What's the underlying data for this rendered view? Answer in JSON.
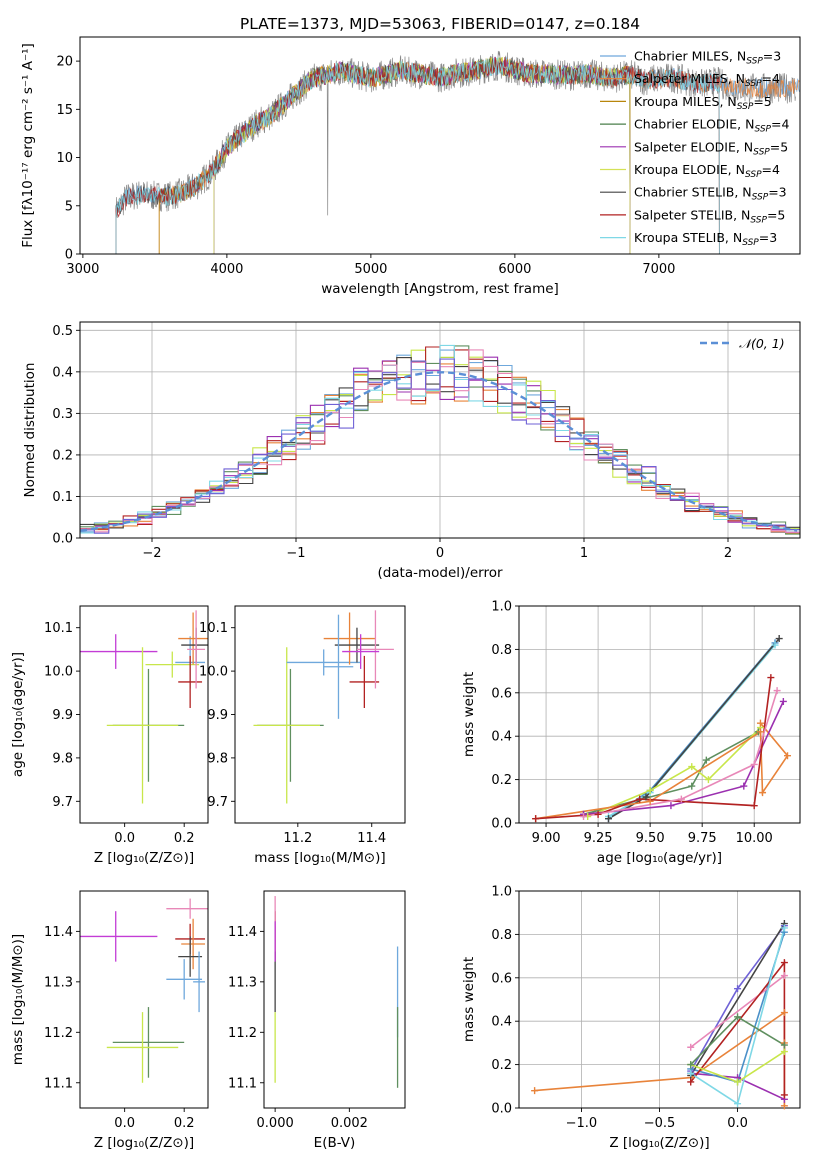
{
  "figure_title": "PLATE=1373, MJD=53063, FIBERID=0147, z=0.184",
  "chart_data": [
    {
      "id": "spectrum",
      "type": "line",
      "xlabel": "wavelength [Angstrom, rest frame]",
      "ylabel": "Flux [fλ10⁻¹⁷ erg cm⁻² s⁻¹ A⁻¹]",
      "xlim": [
        2980,
        7980
      ],
      "ylim": [
        0,
        22.5
      ],
      "xticks": [
        3000,
        4000,
        5000,
        6000,
        7000
      ],
      "yticks": [
        0,
        5,
        10,
        15,
        20
      ],
      "legend_position": "upper right",
      "grid": false,
      "x": [
        3230,
        3300,
        3400,
        3500,
        3600,
        3700,
        3800,
        3900,
        4000,
        4100,
        4200,
        4300,
        4400,
        4500,
        4600,
        4700,
        4800,
        4900,
        5000,
        5100,
        5200,
        5300,
        5400,
        5500,
        5600,
        5700,
        5800,
        5900,
        6000,
        6100,
        6200,
        6300,
        6400,
        6500,
        6600,
        6700,
        6800,
        6900,
        7000,
        7100,
        7200,
        7300,
        7400,
        7500
      ],
      "y": [
        4.5,
        5.8,
        6.2,
        6.0,
        6.0,
        6.4,
        7.2,
        8.6,
        11.0,
        12.3,
        13.5,
        14.3,
        15.6,
        17.0,
        18.2,
        18.6,
        19.0,
        18.6,
        18.2,
        18.6,
        19.0,
        18.8,
        18.5,
        18.3,
        18.8,
        18.9,
        19.3,
        19.6,
        19.1,
        18.7,
        18.7,
        18.6,
        18.5,
        18.7,
        18.4,
        18.3,
        18.6,
        18.0,
        18.2,
        18.3,
        17.9,
        17.6,
        17.9,
        17.2
      ],
      "series": [
        {
          "name": "Chabrier MILES, N",
          "sub": "SSP",
          "tail": "=3",
          "color": "#6fa8dc",
          "x_start": 3230,
          "x_end": 7980
        },
        {
          "name": "Salpeter MILES, N",
          "sub": "SSP",
          "tail": "=4",
          "color": "#e8833a",
          "x_start": 3530,
          "x_end": 7980
        },
        {
          "name": "Kroupa MILES, N",
          "sub": "SSP",
          "tail": "=5",
          "color": "#b8860b",
          "x_start": 3530,
          "x_end": 6800
        },
        {
          "name": "Chabrier ELODIE, N",
          "sub": "SSP",
          "tail": "=4",
          "color": "#4a7f4a",
          "x_start": 3910,
          "x_end": 6800
        },
        {
          "name": "Salpeter ELODIE, N",
          "sub": "SSP",
          "tail": "=5",
          "color": "#9b30b0",
          "x_start": 3910,
          "x_end": 6800
        },
        {
          "name": "Kroupa ELODIE, N",
          "sub": "SSP",
          "tail": "=4",
          "color": "#d4e157",
          "x_start": 3910,
          "x_end": 6800
        },
        {
          "name": "Chabrier STELIB, N",
          "sub": "SSP",
          "tail": "=3",
          "color": "#444444",
          "x_start": 3230,
          "x_end": 7420
        },
        {
          "name": "Salpeter STELIB, N",
          "sub": "SSP",
          "tail": "=5",
          "color": "#b22222",
          "x_start": 3230,
          "x_end": 7420
        },
        {
          "name": "Kroupa STELIB, N",
          "sub": "SSP",
          "tail": "=3",
          "color": "#7fd8e6",
          "x_start": 3230,
          "x_end": 7420
        }
      ]
    },
    {
      "id": "residuals",
      "type": "line",
      "xlabel": "(data-model)/error",
      "ylabel": "Normed distribution",
      "xlim": [
        -2.5,
        2.5
      ],
      "ylim": [
        0,
        0.52
      ],
      "xticks": [
        -2,
        -1,
        0,
        1,
        2
      ],
      "yticks": [
        0.0,
        0.1,
        0.2,
        0.3,
        0.4,
        0.5
      ],
      "grid": true,
      "legend": "𝒩(0, 1)",
      "bin_width": 0.1
    },
    {
      "id": "age_vs_Z",
      "type": "scatter",
      "xlabel": "Z [log₁₀(Z/Z⊙)]",
      "ylabel": "age  [log₁₀(age/yr)]",
      "xlim": [
        -0.15,
        0.28
      ],
      "ylim": [
        9.65,
        10.15
      ],
      "xticks": [
        0.0,
        0.2
      ],
      "yticks": [
        9.7,
        9.8,
        9.9,
        10.0,
        10.1
      ],
      "points": [
        {
          "x": -0.03,
          "y": 10.045,
          "xerr": 0.14,
          "yerr": 0.04,
          "color": "#c33dd6"
        },
        {
          "x": 0.08,
          "y": 9.875,
          "xerr": 0.12,
          "yerr": 0.13,
          "color": "#5f8f5f"
        },
        {
          "x": 0.06,
          "y": 9.875,
          "xerr": 0.12,
          "yerr": 0.18,
          "color": "#c8e64a"
        },
        {
          "x": 0.16,
          "y": 10.015,
          "xerr": 0.09,
          "yerr": 0.03,
          "color": "#c8e64a"
        },
        {
          "x": 0.22,
          "y": 10.02,
          "xerr": 0.05,
          "yerr": 0.06,
          "color": "#6fa8dc"
        },
        {
          "x": 0.23,
          "y": 10.075,
          "xerr": 0.05,
          "yerr": 0.06,
          "color": "#e8833a"
        },
        {
          "x": 0.24,
          "y": 10.06,
          "xerr": 0.05,
          "yerr": 0.04,
          "color": "#444444"
        },
        {
          "x": 0.22,
          "y": 9.975,
          "xerr": 0.04,
          "yerr": 0.06,
          "color": "#b22222"
        },
        {
          "x": 0.24,
          "y": 10.05,
          "xerr": 0.03,
          "yerr": 0.09,
          "color": "#e888b8"
        }
      ]
    },
    {
      "id": "age_vs_mass",
      "type": "scatter",
      "xlabel": "mass [log₁₀(M/M⊙)]",
      "ylabel": "",
      "xlim": [
        11.03,
        11.49
      ],
      "ylim": [
        9.65,
        10.15
      ],
      "xticks": [
        11.2,
        11.4
      ],
      "yticks": [
        9.7,
        9.8,
        9.9,
        10.0,
        10.1
      ],
      "points": [
        {
          "x": 11.18,
          "y": 9.875,
          "xerr": 0.09,
          "yerr": 0.13,
          "color": "#5f8f5f"
        },
        {
          "x": 11.17,
          "y": 9.875,
          "xerr": 0.09,
          "yerr": 0.18,
          "color": "#c8e64a"
        },
        {
          "x": 11.27,
          "y": 10.02,
          "xerr": 0.1,
          "yerr": 0.03,
          "color": "#6fa8dc"
        },
        {
          "x": 11.34,
          "y": 10.075,
          "xerr": 0.07,
          "yerr": 0.06,
          "color": "#e8833a"
        },
        {
          "x": 11.36,
          "y": 10.06,
          "xerr": 0.06,
          "yerr": 0.04,
          "color": "#444444"
        },
        {
          "x": 11.38,
          "y": 9.975,
          "xerr": 0.04,
          "yerr": 0.06,
          "color": "#b22222"
        },
        {
          "x": 11.41,
          "y": 10.05,
          "xerr": 0.05,
          "yerr": 0.09,
          "color": "#e888b8"
        },
        {
          "x": 11.37,
          "y": 10.045,
          "xerr": 0.05,
          "yerr": 0.04,
          "color": "#c33dd6"
        },
        {
          "x": 11.31,
          "y": 10.01,
          "xerr": 0.04,
          "yerr": 0.12,
          "color": "#6fa8dc"
        }
      ]
    },
    {
      "id": "weight_vs_age",
      "type": "line",
      "xlabel": "age  [log₁₀(age/yr)]",
      "ylabel": "mass weight",
      "xlim": [
        8.87,
        10.22
      ],
      "ylim": [
        0,
        1
      ],
      "xticks": [
        9.0,
        9.25,
        9.5,
        9.75,
        10.0
      ],
      "yticks": [
        0.0,
        0.2,
        0.4,
        0.6,
        0.8,
        1.0
      ],
      "grid": true,
      "series": [
        {
          "color": "#4a90c8",
          "x": [
            9.3,
            9.5,
            10.1
          ],
          "y": [
            0.02,
            0.15,
            0.83
          ]
        },
        {
          "color": "#7fd8e6",
          "x": [
            9.3,
            9.5,
            10.1
          ],
          "y": [
            0.03,
            0.14,
            0.82
          ]
        },
        {
          "color": "#444444",
          "x": [
            9.3,
            9.48,
            10.12
          ],
          "y": [
            0.02,
            0.12,
            0.85
          ]
        },
        {
          "color": "#5f8f5f",
          "x": [
            9.18,
            9.7,
            9.77,
            10.02
          ],
          "y": [
            0.04,
            0.17,
            0.29,
            0.42
          ]
        },
        {
          "color": "#c8e64a",
          "x": [
            9.2,
            9.5,
            9.7,
            9.78,
            10.03
          ],
          "y": [
            0.03,
            0.15,
            0.26,
            0.2,
            0.44
          ]
        },
        {
          "color": "#e8833a",
          "x": [
            8.95,
            9.5,
            10.03,
            10.04,
            10.16,
            10.03
          ],
          "y": [
            0.02,
            0.1,
            0.42,
            0.14,
            0.31,
            0.46
          ]
        },
        {
          "color": "#9b30b0",
          "x": [
            9.18,
            9.6,
            9.95,
            10.14
          ],
          "y": [
            0.04,
            0.08,
            0.17,
            0.56
          ]
        },
        {
          "color": "#b22222",
          "x": [
            8.95,
            9.25,
            9.45,
            10.0,
            10.08
          ],
          "y": [
            0.02,
            0.04,
            0.11,
            0.08,
            0.67
          ]
        },
        {
          "color": "#e888b8",
          "x": [
            9.18,
            9.65,
            10.0,
            10.11
          ],
          "y": [
            0.03,
            0.11,
            0.27,
            0.61
          ]
        }
      ]
    },
    {
      "id": "mass_vs_Z",
      "type": "scatter",
      "xlabel": "Z [log₁₀(Z/Z⊙)]",
      "ylabel": "mass [log₁₀(M/M⊙)]",
      "xlim": [
        -0.15,
        0.28
      ],
      "ylim": [
        11.05,
        11.48
      ],
      "xticks": [
        0.0,
        0.2
      ],
      "yticks": [
        11.1,
        11.2,
        11.3,
        11.4
      ],
      "points": [
        {
          "x": -0.03,
          "y": 11.39,
          "xerr": 0.14,
          "yerr": 0.05,
          "color": "#c33dd6"
        },
        {
          "x": 0.08,
          "y": 11.18,
          "xerr": 0.12,
          "yerr": 0.07,
          "color": "#5f8f5f"
        },
        {
          "x": 0.06,
          "y": 11.17,
          "xerr": 0.12,
          "yerr": 0.07,
          "color": "#c8e64a"
        },
        {
          "x": 0.2,
          "y": 11.305,
          "xerr": 0.06,
          "yerr": 0.04,
          "color": "#6fa8dc"
        },
        {
          "x": 0.22,
          "y": 11.445,
          "xerr": 0.08,
          "yerr": 0.02,
          "color": "#e888b8"
        },
        {
          "x": 0.22,
          "y": 11.385,
          "xerr": 0.05,
          "yerr": 0.03,
          "color": "#b22222"
        },
        {
          "x": 0.23,
          "y": 11.375,
          "xerr": 0.04,
          "yerr": 0.05,
          "color": "#e8833a"
        },
        {
          "x": 0.22,
          "y": 11.35,
          "xerr": 0.04,
          "yerr": 0.04,
          "color": "#444444"
        },
        {
          "x": 0.25,
          "y": 11.3,
          "xerr": 0.02,
          "yerr": 0.06,
          "color": "#6fa8dc"
        }
      ]
    },
    {
      "id": "mass_vs_ebv",
      "type": "scatter",
      "xlabel": "E(B-V)",
      "ylabel": "",
      "xlim": [
        -0.0003,
        0.0035
      ],
      "ylim": [
        11.05,
        11.48
      ],
      "xticks": [
        0.0,
        0.002
      ],
      "xticklabels": [
        "0.000",
        "0.002"
      ],
      "yticks": [
        11.1,
        11.2,
        11.3,
        11.4
      ],
      "points": [
        {
          "x": 0.0,
          "y": 11.39,
          "yerr": 0.05,
          "color": "#b22222"
        },
        {
          "x": 0.0,
          "y": 11.44,
          "yerr": 0.03,
          "color": "#e888b8"
        },
        {
          "x": 0.0,
          "y": 11.3,
          "yerr": 0.06,
          "color": "#444444"
        },
        {
          "x": 0.0,
          "y": 11.17,
          "yerr": 0.07,
          "color": "#c8e64a"
        },
        {
          "x": 0.0,
          "y": 11.38,
          "yerr": 0.04,
          "color": "#c33dd6"
        },
        {
          "x": 0.0033,
          "y": 11.28,
          "yerr": 0.09,
          "color": "#6fa8dc"
        },
        {
          "x": 0.0033,
          "y": 11.17,
          "yerr": 0.08,
          "color": "#5f8f5f"
        }
      ]
    },
    {
      "id": "weight_vs_Z",
      "type": "line",
      "xlabel": "Z [log₁₀(Z/Z⊙)]",
      "ylabel": "mass weight",
      "xlim": [
        -1.4,
        0.4
      ],
      "ylim": [
        0,
        1
      ],
      "xticks": [
        -1.0,
        -0.5,
        0.0
      ],
      "xticklabels": [
        "−1.0",
        "−0.5",
        "0.0"
      ],
      "yticks": [
        0.0,
        0.2,
        0.4,
        0.6,
        0.8,
        1.0
      ],
      "grid": true,
      "series": [
        {
          "color": "#e8833a",
          "x": [
            -1.3,
            -0.3,
            0.3,
            0.3,
            0.3
          ],
          "y": [
            0.08,
            0.14,
            0.44,
            0.3,
            0.01
          ]
        },
        {
          "color": "#9b30b0",
          "x": [
            -0.3,
            0.0,
            0.3
          ],
          "y": [
            0.16,
            0.14,
            0.04
          ]
        },
        {
          "color": "#6f62d6",
          "x": [
            -0.3,
            0.0,
            0.3
          ],
          "y": [
            0.17,
            0.55,
            0.84
          ]
        },
        {
          "color": "#4a90c8",
          "x": [
            -0.3,
            0.0,
            0.3
          ],
          "y": [
            0.18,
            0.12,
            0.81
          ]
        },
        {
          "color": "#444444",
          "x": [
            -0.3,
            0.3
          ],
          "y": [
            0.15,
            0.85
          ]
        },
        {
          "color": "#e888b8",
          "x": [
            -0.3,
            0.3
          ],
          "y": [
            0.28,
            0.61
          ]
        },
        {
          "color": "#b22222",
          "x": [
            -0.3,
            0.3,
            0.3
          ],
          "y": [
            0.12,
            0.67,
            0.06
          ]
        },
        {
          "color": "#7fd8e6",
          "x": [
            -0.3,
            0.0,
            0.3
          ],
          "y": [
            0.16,
            0.02,
            0.83
          ]
        },
        {
          "color": "#c8e64a",
          "x": [
            -0.3,
            0.0,
            0.3
          ],
          "y": [
            0.2,
            0.12,
            0.26
          ]
        },
        {
          "color": "#5f8f5f",
          "x": [
            -0.3,
            0.0,
            0.3
          ],
          "y": [
            0.2,
            0.42,
            0.29
          ]
        }
      ]
    }
  ]
}
